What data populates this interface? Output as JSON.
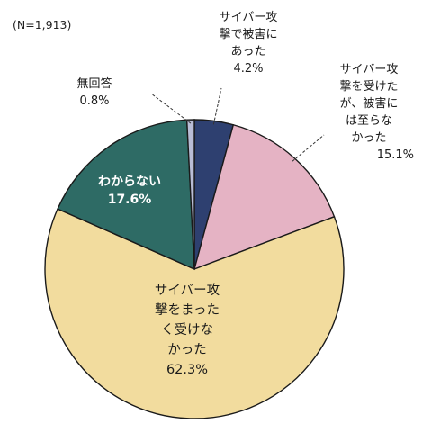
{
  "chart_data": {
    "type": "pie",
    "note": "(N=1,913)",
    "slices": [
      {
        "label": "サイバー攻撃で被害にあった",
        "lines": [
          "サイバー攻",
          "撃で被害に",
          "あった"
        ],
        "value": 4.2,
        "value_label": "4.2%",
        "color": "#2e4070"
      },
      {
        "label": "サイバー攻撃を受けたが、被害には至らなかった",
        "lines": [
          "サイバー攻",
          "撃を受けた",
          "が、被害に",
          "は至らな",
          "かった"
        ],
        "value": 15.1,
        "value_label": "15.1%",
        "color": "#e5b3c4"
      },
      {
        "label": "サイバー攻撃をまったく受けなかった",
        "lines": [
          "サイバー攻",
          "撃をまった",
          "く受けな",
          "かった"
        ],
        "value": 62.3,
        "value_label": "62.3%",
        "color": "#f2dc9e"
      },
      {
        "label": "わからない",
        "lines": [
          "わからない"
        ],
        "value": 17.6,
        "value_label": "17.6%",
        "color": "#2e6b65"
      },
      {
        "label": "無回答",
        "lines": [
          "無回答"
        ],
        "value": 0.8,
        "value_label": "0.8%",
        "color": "#b9bdd6"
      }
    ]
  }
}
